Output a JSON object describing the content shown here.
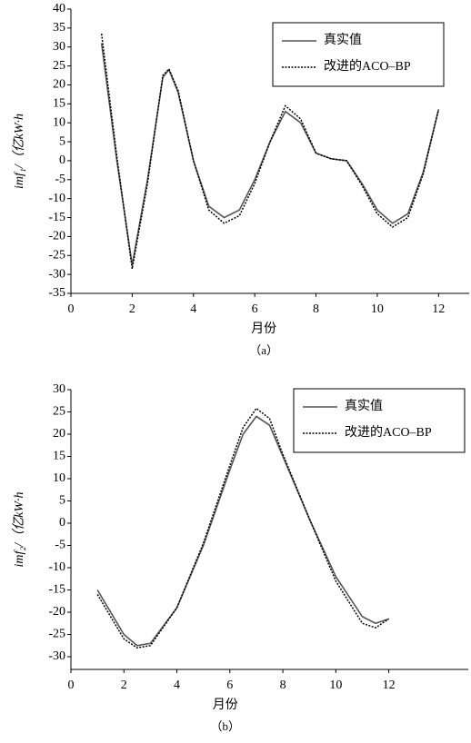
{
  "chart_data": [
    {
      "type": "line",
      "caption": "（a）",
      "xlabel": "月份",
      "ylabel": "imf₁/（亿kW·h",
      "xlim": [
        0,
        13
      ],
      "xticks": [
        0,
        2,
        4,
        6,
        8,
        10,
        12
      ],
      "ylim": [
        -35,
        40
      ],
      "yticks": [
        -35,
        -30,
        -25,
        -20,
        -15,
        -10,
        -5,
        0,
        5,
        10,
        15,
        20,
        25,
        30,
        35,
        40
      ],
      "x": [
        1,
        1.5,
        2,
        2.5,
        3,
        3.2,
        3.5,
        4,
        4.5,
        5,
        5.5,
        6,
        6.5,
        7,
        7.5,
        8,
        8.5,
        9,
        9.5,
        10,
        10.5,
        11,
        11.5,
        12
      ],
      "series": [
        {
          "name": "真实值",
          "color": "#555555",
          "linestyle": "solid",
          "values": [
            31,
            0,
            -27.5,
            -5,
            22,
            24,
            18,
            0,
            -12,
            -15,
            -13,
            -5,
            5,
            13,
            10,
            2,
            0.5,
            0,
            -6,
            -13,
            -16.5,
            -14,
            -3,
            13.5
          ]
        },
        {
          "name": "改进的ACO–BP",
          "color": "#000000",
          "linestyle": "dotted",
          "values": [
            33.5,
            1,
            -28.5,
            -6,
            22.5,
            24.2,
            18.5,
            0,
            -13,
            -16.5,
            -14.5,
            -6,
            5,
            14.5,
            11,
            2,
            0.5,
            0,
            -6.5,
            -14,
            -17.5,
            -15,
            -3.5,
            13.5
          ]
        }
      ]
    },
    {
      "type": "line",
      "caption": "（b）",
      "xlabel": "月份",
      "ylabel": "imf₂/（亿kW·h",
      "xlim": [
        0,
        15
      ],
      "xticks": [
        0,
        2,
        4,
        6,
        8,
        10,
        12
      ],
      "ylim": [
        -30,
        30
      ],
      "yticks": [
        -30,
        -25,
        -20,
        -15,
        -10,
        -5,
        0,
        5,
        10,
        15,
        20,
        25,
        30
      ],
      "x": [
        1,
        2,
        2.5,
        3,
        4,
        5,
        6,
        6.5,
        7,
        7.5,
        8,
        9,
        10,
        11,
        11.5,
        12
      ],
      "series": [
        {
          "name": "真实值",
          "color": "#555555",
          "linestyle": "solid",
          "values": [
            -15,
            -25,
            -27.5,
            -27,
            -19,
            -5,
            12,
            20,
            24,
            22,
            15,
            1,
            -12,
            -21,
            -22.5,
            -21.5
          ]
        },
        {
          "name": "改进的ACO–BP",
          "color": "#000000",
          "linestyle": "dotted",
          "values": [
            -16,
            -26,
            -28,
            -27.5,
            -19,
            -4.5,
            13,
            21.5,
            25.8,
            23.5,
            15.5,
            1,
            -13,
            -22.5,
            -23.5,
            -21.5
          ]
        }
      ]
    }
  ]
}
